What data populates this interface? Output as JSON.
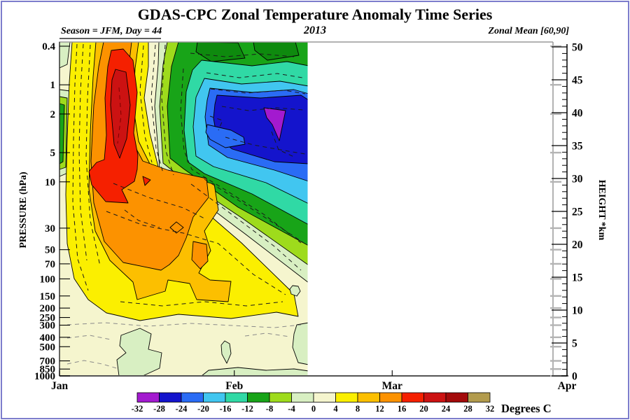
{
  "window": {
    "border_color": "#7d7dcc",
    "background": "#ffffff"
  },
  "header": {
    "title": "GDAS-CPC Zonal Temperature Anomaly Time Series",
    "subtitle_left": "Season = JFM, Day =  44",
    "subtitle_center": "2013",
    "subtitle_right": "Zonal Mean [60,90]"
  },
  "chart_data": {
    "type": "filled_contour_time_series",
    "title": "GDAS-CPC Zonal Temperature Anomaly Time Series",
    "year": "2013",
    "season": "JFM",
    "day_of_data_extent": 44,
    "zonal_mean_band": "[60,90]",
    "units": "Degrees C",
    "contour_fill_interval": 4,
    "x_axis": {
      "months": [
        {
          "label": "Jan",
          "day": 0
        },
        {
          "label": "Feb",
          "day": 31
        },
        {
          "label": "Mar",
          "day": 59
        },
        {
          "label": "Apr",
          "day": 90
        }
      ],
      "range_days": 90
    },
    "y_axis_left": {
      "label": "PRESSURE (hPa)",
      "scale": "log",
      "ticks": [
        0.4,
        1,
        2,
        5,
        10,
        30,
        50,
        70,
        100,
        150,
        200,
        250,
        300,
        400,
        500,
        700,
        850,
        1000
      ]
    },
    "y_axis_right": {
      "label": "HEIGHT *km",
      "ticks_major": [
        0,
        5,
        10,
        15,
        20,
        25,
        30,
        35,
        40,
        45,
        50
      ],
      "minor_step_km": 1,
      "range_km": [
        0,
        50
      ]
    },
    "colorbar": {
      "label": "Degrees C",
      "boundaries": [
        -32,
        -28,
        -24,
        -20,
        -16,
        -12,
        -8,
        -4,
        0,
        4,
        8,
        12,
        16,
        20,
        24,
        28,
        32
      ],
      "colors": [
        "#A31ACF",
        "#1414CC",
        "#2A6CF5",
        "#41C6F0",
        "#30D9A5",
        "#18A418",
        "#9EDB1C",
        "#D8EFC2",
        "#F5F5CE",
        "#FBEF00",
        "#FCBF00",
        "#FC9200",
        "#F52000",
        "#CC1212",
        "#A30A0A",
        "#B29B4D"
      ]
    },
    "features": [
      "Stratospheric warm anomaly tower in mid-January, peak +20 to +24 C near 2-10 hPa",
      "Warm anomaly +12 to +16 C descending through 10-100 hPa during late January / early February",
      "Cold anomaly aloft in early February, minimum -28 to -32 C near 1-3 hPa (purple core)",
      "Weak anomalies 0 to +4 C in troposphere below 250 hPa",
      "Data plotted from Jan 1 through day 44 (Feb 13); remainder of season blank"
    ],
    "palette": {
      "cream": "#F5F5CE",
      "palegreen": "#D8EFC2",
      "chartreuse": "#9EDB1C",
      "green": "#18A418",
      "darkgreen": "#0E8A0E",
      "teal": "#30D9A5",
      "sky": "#41C6F0",
      "royal": "#2A6CF5",
      "navy": "#1414CC",
      "purple": "#A31ACF",
      "yellow": "#FBEF00",
      "gold": "#FCBF00",
      "orange": "#FC9200",
      "red": "#F52000",
      "crimson": "#CC1212"
    },
    "regions": [
      {
        "c": "cream",
        "p": "85,60 441,60 441,537 85,537"
      },
      {
        "c": "palegreen",
        "p": "85,60 100,60 96,92 85,97"
      },
      {
        "c": "palegreen",
        "p": "85,128 100,130 97,247 85,252"
      },
      {
        "c": "chartreuse",
        "p": "85,138 96,140 94,239 85,242"
      },
      {
        "c": "green",
        "p": "85,148 92,150 90,231 85,234"
      },
      {
        "c": "palegreen",
        "p": "227,60 441,60 441,404 350,334 262,268 228,241 221,152 226,92"
      },
      {
        "c": "chartreuse",
        "p": "239,60 441,60 441,379 345,311 258,253 233,233 228,152 233,92"
      },
      {
        "c": "green",
        "p": "255,60 441,60 441,351 340,296 262,241 243,226 239,152 245,95"
      },
      {
        "c": "darkgreen",
        "p": "282,60 340,61 350,83 302,88 280,74"
      },
      {
        "c": "darkgreen",
        "p": "362,60 422,60 427,79 382,86 364,72"
      },
      {
        "c": "teal",
        "p": "288,86 360,94 410,88 441,94 441,321 360,277 292,248 268,231 263,186 266,131 275,100"
      },
      {
        "c": "sky",
        "p": "292,112 345,120 400,116 441,123 441,291 380,261 305,238 280,223 276,181 280,139"
      },
      {
        "c": "royal",
        "p": "300,126 360,132 420,128 441,134 441,259 392,243 325,225 298,207 293,167 296,143"
      },
      {
        "c": "navy",
        "p": "310,136 372,140 430,136 441,143 441,234 392,231 332,213 310,197 305,169 307,149"
      },
      {
        "c": "royal",
        "p": "296,178 330,186 348,196 350,206 322,211 300,199 294,189"
      },
      {
        "c": "purple",
        "p": "377,154 408,158 399,201 389,178 381,168"
      },
      {
        "c": "yellow",
        "p": "103,60 212,60 212,95 206,140 214,190 226,238 232,254 285,295 345,347 420,420 426,452 395,446 330,455 255,449 200,458 152,447 126,428 106,398 96,348 94,278 96,198 99,118"
      },
      {
        "c": "gold",
        "p": "137,60 198,60 193,98 190,150 198,202 214,234 262,252 306,263 312,300 292,330 301,358 284,390 300,400 330,402 326,431 281,428 271,405 240,400 236,416 196,428 190,403 157,372 136,330 127,270 129,190 133,110"
      },
      {
        "c": "orange",
        "p": "148,60 188,60 184,95 181,150 189,202 204,230 240,243 295,255 298,282 276,310 266,340 255,365 242,378 230,386 176,375 149,345 134,290 130,230 134,150 141,95"
      },
      {
        "c": "orange",
        "p": "276,345 295,349 297,373 286,384 274,371"
      },
      {
        "c": "orange",
        "p": "252,317 262,325 252,333 243,325"
      },
      {
        "c": "red",
        "p": "159,72 176,70 190,86 196,132 191,190 197,222 196,242 192,259 174,271 183,290 151,288 131,264 127,245 138,232 149,228 152,193 150,140 154,95"
      },
      {
        "c": "crimson",
        "p": "165,99 180,103 186,150 181,198 171,226 163,206 158,150 160,114"
      },
      {
        "c": "red",
        "p": "204,252 215,257 207,265"
      },
      {
        "c": "palegreen",
        "p": "173,479 200,469 216,477 212,499 231,504 228,526 204,537 170,537 167,514 180,504 171,494"
      },
      {
        "c": "palegreen",
        "p": "321,487 328,491 330,505 324,519 317,506 316,493"
      },
      {
        "c": "palegreen",
        "p": "288,537 298,529 340,525 380,529 420,527 441,530 441,537"
      },
      {
        "c": "palegreen",
        "p": "424,464 441,461 441,521 426,518 418,496 420,477"
      },
      {
        "c": "palegreen",
        "p": "418,408 426,409 429,416 424,423 416,420 414,413"
      }
    ],
    "dashes": [
      {
        "p": "110,63 107,120 105,200 104,290 111,370 126,415"
      },
      {
        "p": "119,63 115,130 113,215 115,300 124,372"
      },
      {
        "p": "129,64 125,140 123,225 129,315 143,380"
      },
      {
        "p": "205,65 200,130 207,195 217,232"
      },
      {
        "p": "222,64 216,140 223,212 233,247"
      },
      {
        "p": "236,64 231,140 237,216 248,250"
      },
      {
        "p": "262,98 258,158 263,215 274,242 320,270 378,307 430,347"
      },
      {
        "p": "295,104 342,111 396,105 432,111"
      },
      {
        "p": "301,127 352,133 406,129 436,134"
      },
      {
        "p": "317,152 355,158 395,154 433,157"
      },
      {
        "p": "322,196 362,207 412,216 436,220"
      },
      {
        "p": "292,256 342,287 396,322 434,347"
      },
      {
        "p": "273,263 332,307 392,352 430,386"
      },
      {
        "p": "152,302 205,322 262,333 312,348 362,392 408,421"
      },
      {
        "p": "162,262 212,282 262,297 292,312"
      },
      {
        "p": "96,464 150,461 212,466 272,462 332,465 392,468 430,464",
        "g": 1
      },
      {
        "p": "96,483 128,479 158,485",
        "g": 1
      },
      {
        "p": "172,431 232,437 292,431 352,437 404,431"
      },
      {
        "p": "272,76 322,81 372,77 420,81"
      },
      {
        "p": "170,125 173,165 168,205",
        "r": 1
      },
      {
        "p": "178,300 198,315 228,325"
      },
      {
        "p": "388,188 398,214 420,224"
      },
      {
        "p": "300,166 318,172 312,186"
      },
      {
        "p": "96,520 120,515 146,520 170,527",
        "g": 1
      },
      {
        "p": "350,480 380,476 414,481",
        "g": 1
      }
    ]
  }
}
